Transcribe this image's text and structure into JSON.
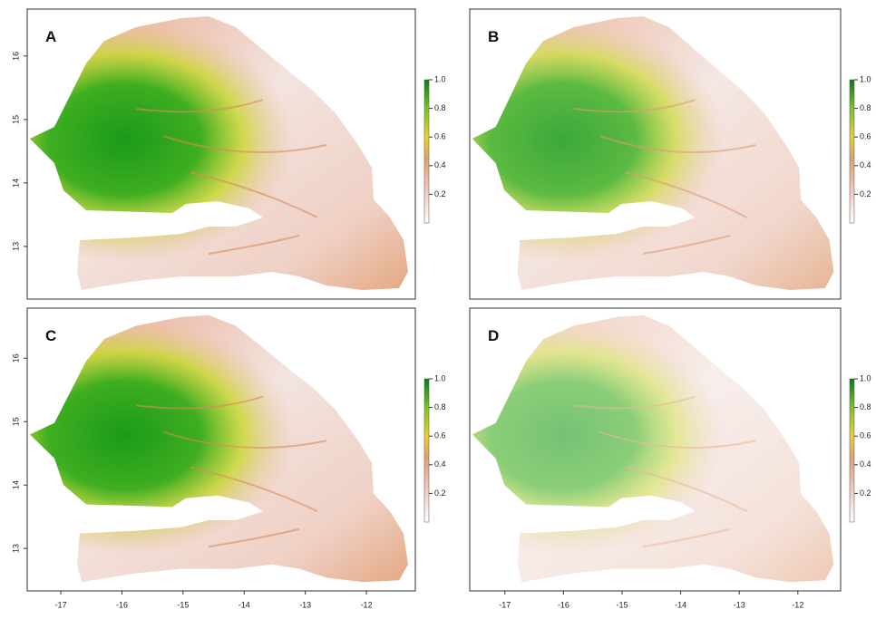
{
  "panels": [
    {
      "label": "A",
      "xlim": [
        -17.55,
        -11.2
      ],
      "ylim": [
        12.17,
        16.74
      ],
      "yticks": [
        13,
        14,
        15,
        16
      ],
      "colorbar": {
        "lim": [
          0,
          1
        ],
        "ticks": [
          0.2,
          0.4,
          0.6,
          0.8,
          {
            "value": 1,
            "label": "1.0"
          }
        ]
      }
    },
    {
      "label": "B",
      "xlim": [
        -17.6,
        -11.27
      ],
      "ylim": [
        12.17,
        16.74
      ],
      "colorbar": {
        "lim": [
          0,
          1
        ],
        "ticks": [
          0.2,
          0.4,
          0.6,
          0.8,
          {
            "value": 1,
            "label": "1.0"
          }
        ]
      }
    },
    {
      "label": "C",
      "xlim": [
        -17.55,
        -11.2
      ],
      "ylim": [
        12.33,
        16.79
      ],
      "yticks": [
        13,
        14,
        15,
        16
      ],
      "xticks": [
        -17,
        -16,
        -15,
        -14,
        -13,
        -12
      ],
      "colorbar": {
        "lim": [
          0,
          1
        ],
        "ticks": [
          0.2,
          0.4,
          0.6,
          0.8,
          {
            "value": 1,
            "label": "1.0"
          }
        ]
      }
    },
    {
      "label": "D",
      "xlim": [
        -17.6,
        -11.27
      ],
      "ylim": [
        12.33,
        16.79
      ],
      "xticks": [
        -17,
        -16,
        -15,
        -14,
        -13,
        -12
      ],
      "colorbar": {
        "lim": [
          0,
          1
        ],
        "ticks": [
          0.2,
          0.4,
          0.6,
          0.8,
          {
            "value": 1,
            "label": "1.0"
          }
        ]
      }
    }
  ]
}
